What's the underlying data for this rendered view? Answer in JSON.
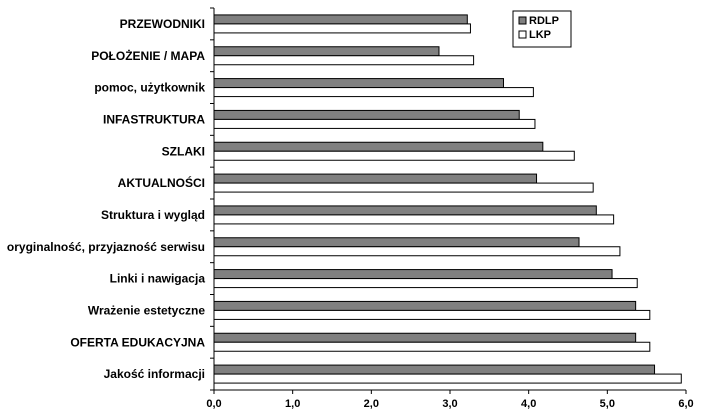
{
  "chart_data": {
    "type": "bar",
    "orientation": "horizontal",
    "categories": [
      "PRZEWODNIKI",
      "POŁOŻENIE / MAPA",
      "pomoc, użytkownik",
      "INFASTRUKTURA",
      "SZLAKI",
      "AKTUALNOŚCI",
      "Struktura i wygląd",
      "oryginalność, przyjazność serwisu",
      "Linki i nawigacja",
      "Wrażenie estetyczne",
      "OFERTA EDUKACYJNA",
      "Jakość informacji"
    ],
    "series": [
      {
        "name": "RDLP",
        "color": "#808080",
        "values": [
          3.22,
          2.86,
          3.68,
          3.88,
          4.18,
          4.1,
          4.86,
          4.64,
          5.06,
          5.36,
          5.36,
          5.6
        ]
      },
      {
        "name": "LKP",
        "color": "#ffffff",
        "values": [
          3.26,
          3.3,
          4.06,
          4.08,
          4.58,
          4.82,
          5.08,
          5.16,
          5.38,
          5.54,
          5.54,
          5.94
        ]
      }
    ],
    "xlim": [
      0,
      6
    ],
    "xticks": [
      "0,0",
      "1,0",
      "2,0",
      "3,0",
      "4,0",
      "5,0",
      "6,0"
    ],
    "title": "",
    "xlabel": "",
    "ylabel": "",
    "grid": false,
    "legend_position": "top-right"
  }
}
